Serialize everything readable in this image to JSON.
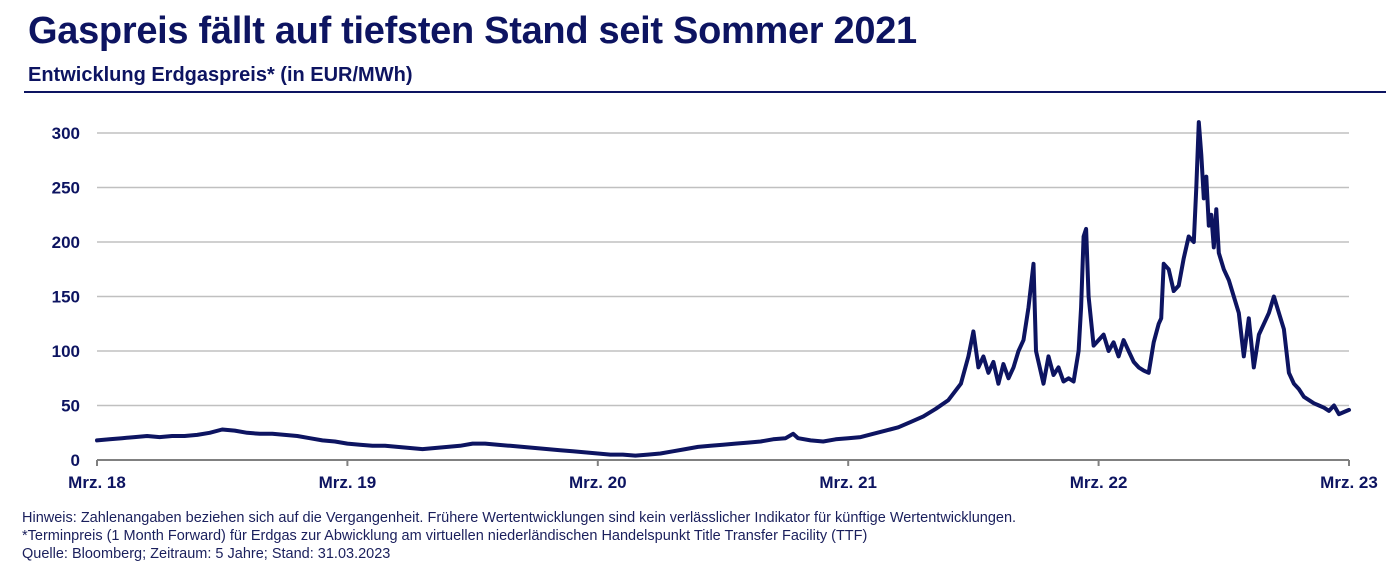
{
  "header": {
    "title": "Gaspreis fällt auf tiefsten Stand seit Sommer 2021",
    "subtitle": "Entwicklung Erdgaspreis* (in EUR/MWh)"
  },
  "footer": {
    "note": "Hinweis: Zahlenangaben beziehen sich auf die Vergangenheit. Frühere Wertentwicklungen sind kein verlässlicher Indikator für künftige Wertentwicklungen.",
    "footnote": "*Terminpreis (1 Month Forward) für Erdgas zur Abwicklung am virtuellen niederländischen Handelspunkt Title Transfer Facility (TTF)",
    "source": "Quelle: Bloomberg; Zeitraum: 5 Jahre; Stand: 31.03.2023"
  },
  "colors": {
    "line": "#0d1461",
    "text": "#0d1461",
    "grid": "#c0c0c0",
    "axis": "#808080"
  },
  "chart_data": {
    "type": "line",
    "title": "Entwicklung Erdgaspreis* (in EUR/MWh)",
    "xlabel": "",
    "ylabel": "",
    "ylim": [
      0,
      300
    ],
    "xlim": [
      0,
      5
    ],
    "grid": true,
    "yticks": [
      0,
      50,
      100,
      150,
      200,
      250,
      300
    ],
    "ytick_labels": [
      "0",
      "50",
      "100",
      "150",
      "200",
      "250",
      "300"
    ],
    "xticks": [
      0,
      1,
      2,
      3,
      4,
      5
    ],
    "xtick_labels": [
      "Mrz. 18",
      "Mrz. 19",
      "Mrz. 20",
      "Mrz. 21",
      "Mrz. 22",
      "Mrz. 23"
    ],
    "series": [
      {
        "name": "Erdgaspreis TTF (EUR/MWh)",
        "x": [
          0.0,
          0.05,
          0.1,
          0.15,
          0.2,
          0.25,
          0.3,
          0.35,
          0.4,
          0.45,
          0.5,
          0.55,
          0.6,
          0.65,
          0.7,
          0.75,
          0.8,
          0.85,
          0.9,
          0.95,
          1.0,
          1.05,
          1.1,
          1.15,
          1.2,
          1.25,
          1.3,
          1.35,
          1.4,
          1.45,
          1.5,
          1.55,
          1.6,
          1.65,
          1.7,
          1.75,
          1.8,
          1.85,
          1.9,
          1.95,
          2.0,
          2.05,
          2.1,
          2.15,
          2.2,
          2.25,
          2.3,
          2.35,
          2.4,
          2.45,
          2.5,
          2.55,
          2.6,
          2.65,
          2.7,
          2.75,
          2.78,
          2.8,
          2.85,
          2.9,
          2.95,
          3.0,
          3.05,
          3.1,
          3.15,
          3.2,
          3.25,
          3.3,
          3.35,
          3.4,
          3.45,
          3.48,
          3.5,
          3.52,
          3.54,
          3.56,
          3.58,
          3.6,
          3.62,
          3.64,
          3.66,
          3.68,
          3.7,
          3.72,
          3.74,
          3.75,
          3.76,
          3.78,
          3.8,
          3.82,
          3.84,
          3.86,
          3.88,
          3.9,
          3.92,
          3.93,
          3.94,
          3.95,
          3.96,
          3.98,
          4.0,
          4.02,
          4.04,
          4.06,
          4.08,
          4.1,
          4.12,
          4.14,
          4.16,
          4.18,
          4.2,
          4.22,
          4.24,
          4.25,
          4.26,
          4.28,
          4.3,
          4.32,
          4.34,
          4.36,
          4.38,
          4.39,
          4.4,
          4.41,
          4.42,
          4.43,
          4.44,
          4.45,
          4.46,
          4.47,
          4.48,
          4.5,
          4.52,
          4.54,
          4.56,
          4.58,
          4.6,
          4.62,
          4.64,
          4.66,
          4.68,
          4.7,
          4.72,
          4.74,
          4.76,
          4.78,
          4.8,
          4.82,
          4.84,
          4.86,
          4.88,
          4.9,
          4.92,
          4.94,
          4.96,
          4.98,
          5.0
        ],
        "values": [
          18,
          19,
          20,
          21,
          22,
          21,
          22,
          22,
          23,
          25,
          28,
          27,
          25,
          24,
          24,
          23,
          22,
          20,
          18,
          17,
          15,
          14,
          13,
          13,
          12,
          11,
          10,
          11,
          12,
          13,
          15,
          15,
          14,
          13,
          12,
          11,
          10,
          9,
          8,
          7,
          6,
          5,
          5,
          4,
          5,
          6,
          8,
          10,
          12,
          13,
          14,
          15,
          16,
          17,
          19,
          20,
          24,
          20,
          18,
          17,
          19,
          20,
          21,
          24,
          27,
          30,
          35,
          40,
          47,
          55,
          70,
          95,
          118,
          85,
          95,
          80,
          90,
          70,
          88,
          75,
          85,
          100,
          110,
          140,
          180,
          100,
          90,
          70,
          95,
          78,
          85,
          72,
          75,
          72,
          100,
          140,
          205,
          212,
          150,
          105,
          110,
          115,
          100,
          108,
          95,
          110,
          100,
          90,
          85,
          82,
          80,
          108,
          125,
          130,
          180,
          175,
          155,
          160,
          185,
          205,
          200,
          250,
          310,
          280,
          240,
          260,
          215,
          225,
          195,
          230,
          190,
          175,
          165,
          150,
          135,
          95,
          130,
          85,
          115,
          125,
          135,
          150,
          135,
          120,
          80,
          70,
          65,
          58,
          55,
          52,
          50,
          48,
          45,
          50,
          42,
          44,
          46
        ]
      }
    ]
  }
}
